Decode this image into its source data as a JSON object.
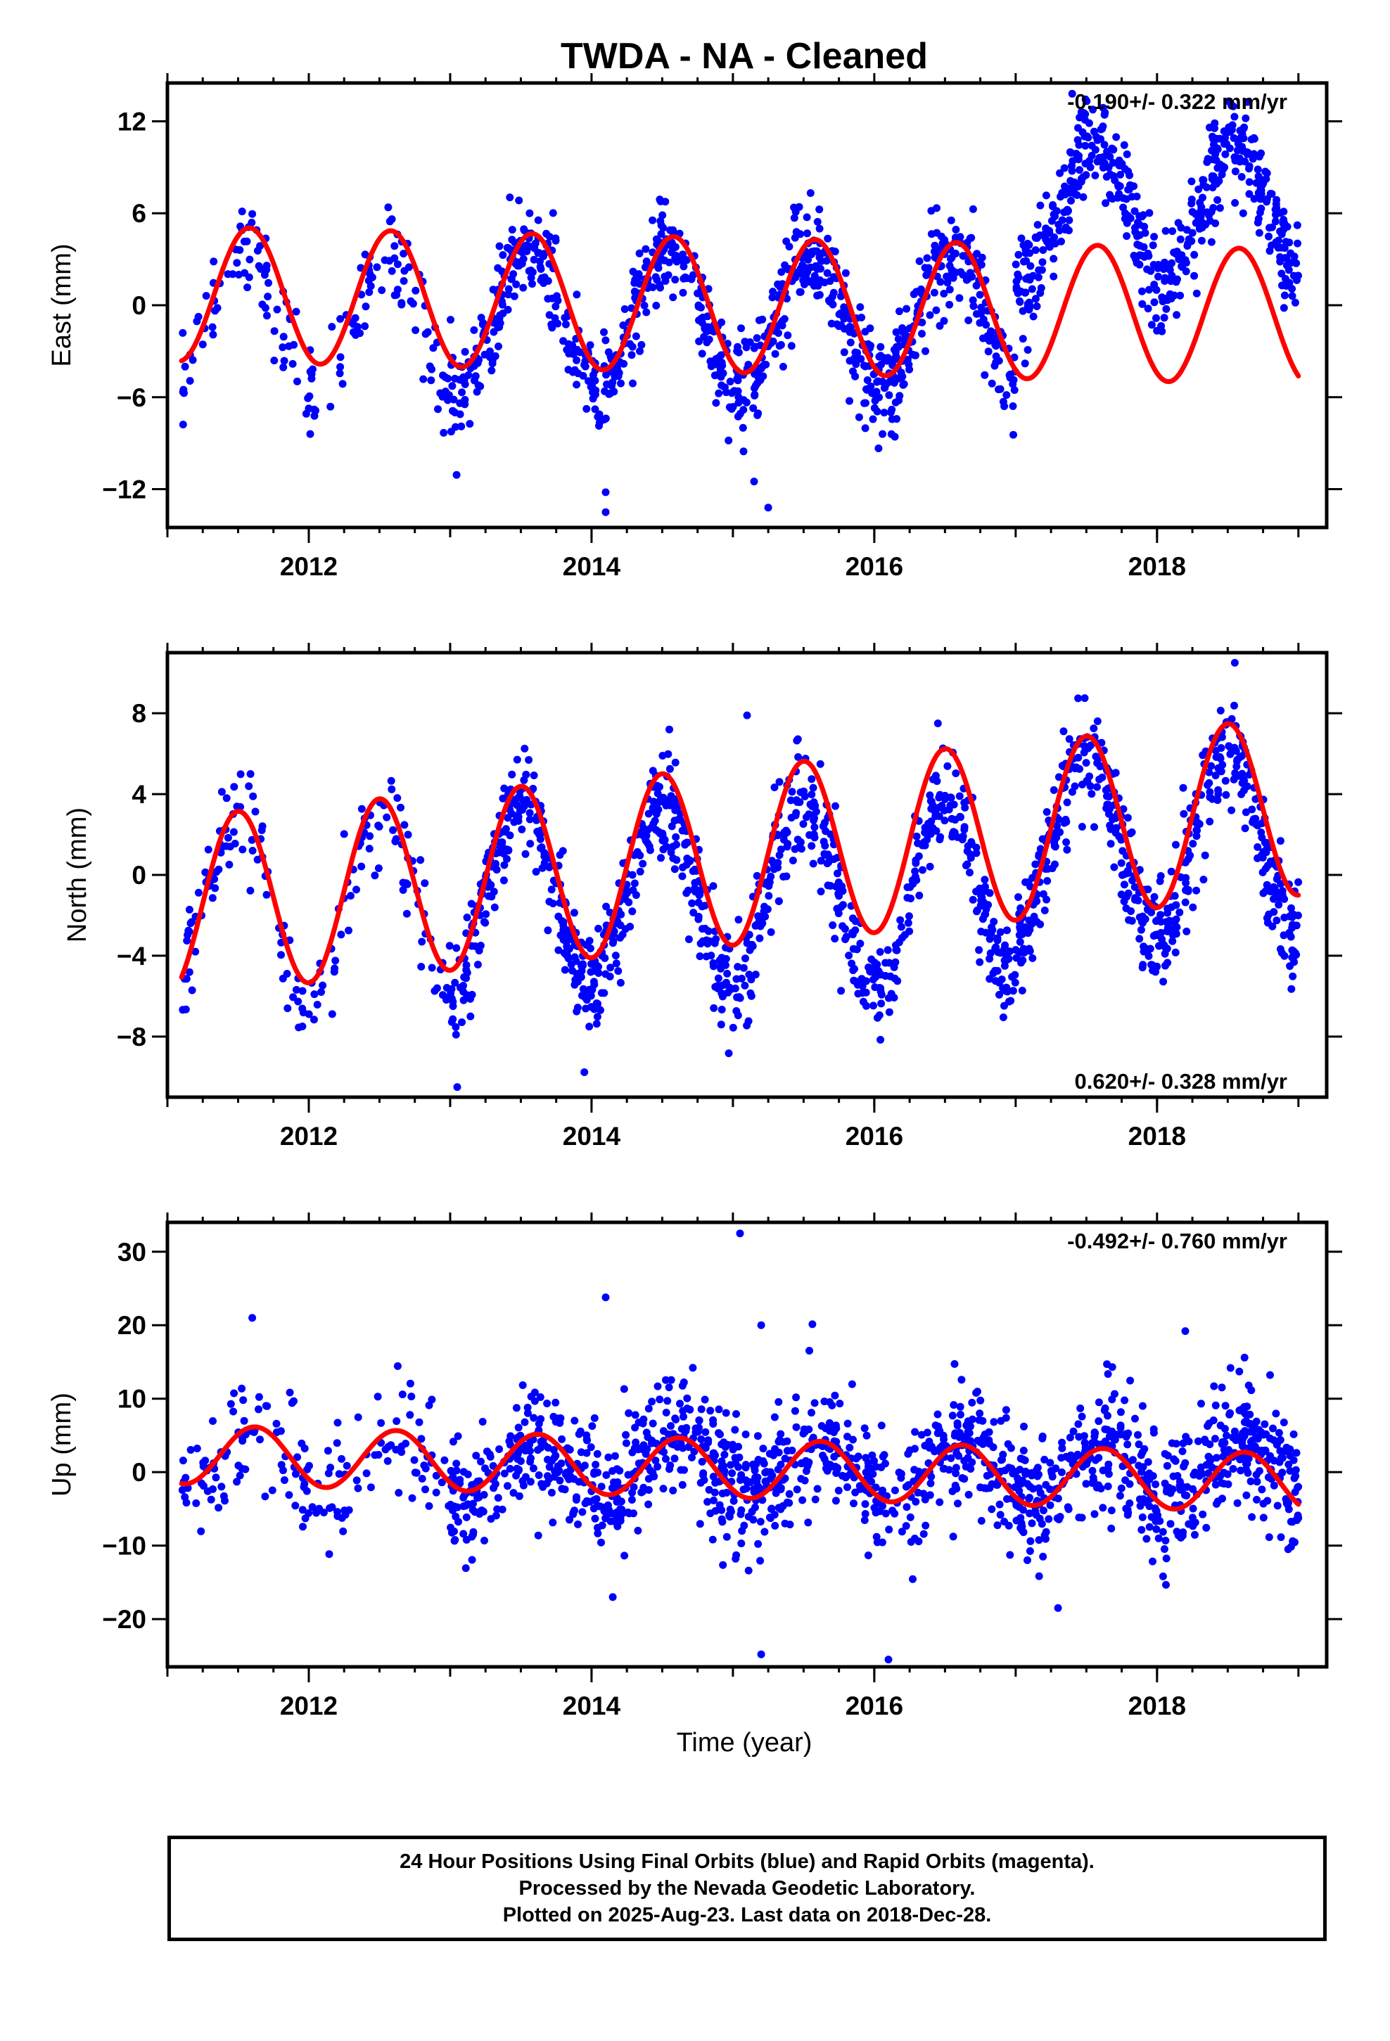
{
  "title": "TWDA  - NA - Cleaned",
  "xlabel": "Time (year)",
  "caption": [
    "24 Hour Positions Using Final Orbits (blue) and Rapid Orbits (magenta).",
    "Processed by the Nevada Geodetic Laboratory.",
    "Plotted on 2025-Aug-23. Last data on 2018-Dec-28."
  ],
  "colors": {
    "observations": "#0000ff",
    "model": "#ff0000"
  },
  "chart_data": [
    {
      "type": "scatter",
      "ylabel": "East (mm)",
      "rate_label": "-0.190+/- 0.322 mm/yr",
      "xlim": [
        2011.0,
        2019.2
      ],
      "ylim": [
        -14.5,
        14.5
      ],
      "xticks": [
        2012,
        2014,
        2016,
        2018
      ],
      "yticks": [
        -12,
        -6,
        0,
        6,
        12
      ],
      "model": {
        "offset": 0.0,
        "trend": -0.19,
        "amplitude": 4.4,
        "peak_phase": 0.58,
        "trend_ref": 2015.0
      },
      "obs_amplitude": 4.5,
      "obs_peak_phase": 0.55,
      "obs_noise": 1.6,
      "obs_segments": [
        {
          "x0": 2011.1,
          "x1": 2013.0,
          "n": 160,
          "offset": -1.0
        },
        {
          "x0": 2013.0,
          "x1": 2017.0,
          "n": 900,
          "offset": -1.0
        },
        {
          "x0": 2017.0,
          "x1": 2019.0,
          "n": 500,
          "offset": 6.0
        }
      ],
      "outliers": [
        [
          2014.1,
          -13.5
        ],
        [
          2014.1,
          -12.2
        ],
        [
          2015.15,
          -11.5
        ],
        [
          2015.25,
          -13.2
        ],
        [
          2017.4,
          13.8
        ]
      ],
      "x_range": [
        2011.1,
        2019.0
      ]
    },
    {
      "type": "scatter",
      "ylabel": "North (mm)",
      "rate_label": "0.620+/- 0.328 mm/yr",
      "xlim": [
        2011.0,
        2019.2
      ],
      "ylim": [
        -11,
        11
      ],
      "xticks": [
        2012,
        2014,
        2016,
        2018
      ],
      "yticks": [
        -8,
        -4,
        0,
        4,
        8
      ],
      "model": {
        "offset": -1.5,
        "trend": 0.62,
        "amplitude": 4.4,
        "peak_phase": 0.5,
        "trend_ref": 2011.1
      },
      "obs_amplitude": 4.6,
      "obs_peak_phase": 0.5,
      "obs_noise": 1.3,
      "obs_segments": [
        {
          "x0": 2011.1,
          "x1": 2013.0,
          "n": 160,
          "offset": -1.5
        },
        {
          "x0": 2013.0,
          "x1": 2017.0,
          "n": 900,
          "offset": -1.0
        },
        {
          "x0": 2017.0,
          "x1": 2019.0,
          "n": 500,
          "offset": 1.5
        }
      ],
      "outliers": [
        [
          2013.05,
          -10.5
        ],
        [
          2015.1,
          7.9
        ],
        [
          2014.55,
          7.2
        ],
        [
          2016.45,
          7.5
        ],
        [
          2018.55,
          10.5
        ]
      ],
      "x_range": [
        2011.1,
        2019.0
      ]
    },
    {
      "type": "scatter",
      "ylabel": "Up (mm)",
      "rate_label": "-0.492+/- 0.760 mm/yr",
      "xlim": [
        2011.0,
        2019.2
      ],
      "ylim": [
        -26.5,
        34
      ],
      "xticks": [
        2012,
        2014,
        2016,
        2018
      ],
      "yticks": [
        -20,
        -10,
        0,
        10,
        20,
        30
      ],
      "model": {
        "offset": 0.5,
        "trend": -0.49,
        "amplitude": 4.0,
        "peak_phase": 0.62,
        "trend_ref": 2015.0
      },
      "obs_amplitude": 4.0,
      "obs_peak_phase": 0.62,
      "obs_noise": 4.2,
      "obs_segments": [
        {
          "x0": 2011.1,
          "x1": 2013.0,
          "n": 160,
          "offset": 1.0
        },
        {
          "x0": 2013.0,
          "x1": 2017.0,
          "n": 900,
          "offset": 0.5
        },
        {
          "x0": 2017.0,
          "x1": 2019.0,
          "n": 500,
          "offset": 0.0
        }
      ],
      "outliers": [
        [
          2015.05,
          32.5
        ],
        [
          2014.1,
          23.8
        ],
        [
          2015.2,
          20.0
        ],
        [
          2011.6,
          21.0
        ],
        [
          2018.2,
          19.2
        ],
        [
          2015.2,
          -24.8
        ],
        [
          2016.1,
          -25.5
        ],
        [
          2017.3,
          -18.5
        ],
        [
          2014.15,
          -17.0
        ]
      ],
      "x_range": [
        2011.1,
        2019.0
      ]
    }
  ]
}
